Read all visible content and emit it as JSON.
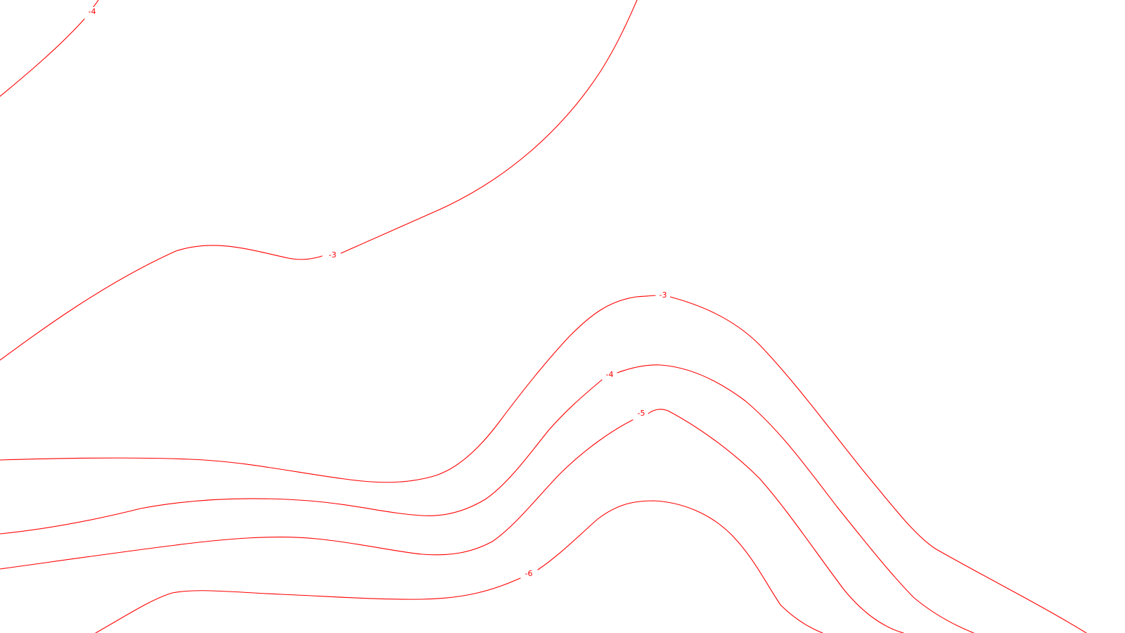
{
  "map": {
    "line_color": "#ff0000",
    "background_color": "#ffffff",
    "contours": [
      {
        "id": "contour-1",
        "value": "-4",
        "label": "-4"
      },
      {
        "id": "contour-2",
        "value": "-3",
        "label": "-3"
      },
      {
        "id": "contour-3",
        "value": "-3",
        "label": "-3"
      },
      {
        "id": "contour-4",
        "value": "-4",
        "label": "-4"
      },
      {
        "id": "contour-5",
        "value": "-5",
        "label": "-5"
      },
      {
        "id": "contour-6",
        "value": "-6",
        "label": "-6"
      }
    ]
  }
}
